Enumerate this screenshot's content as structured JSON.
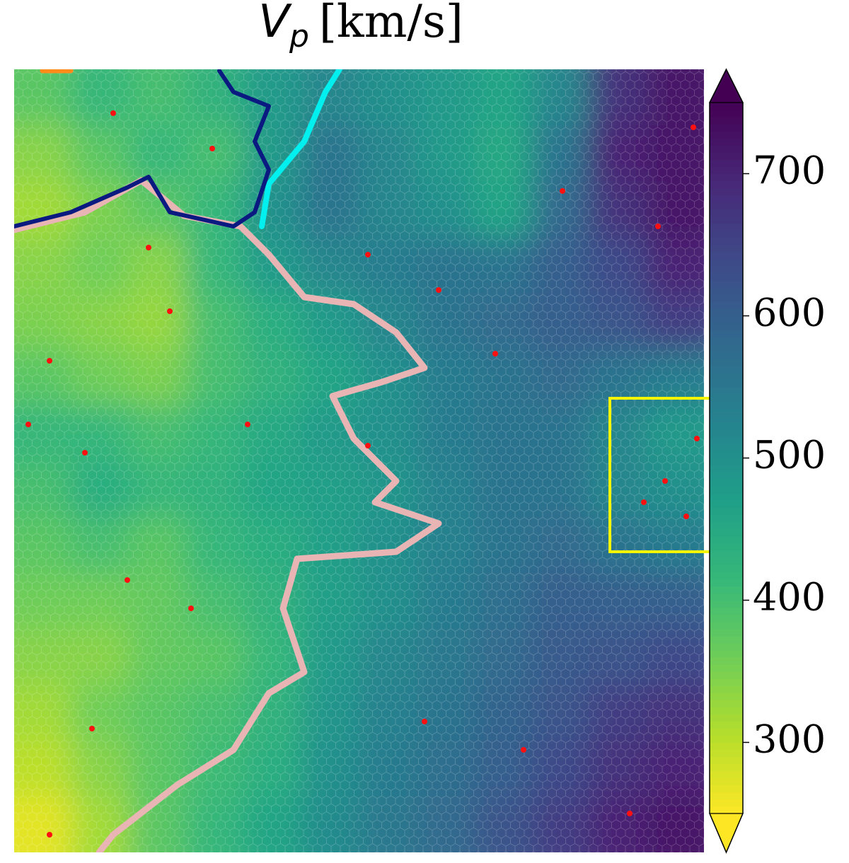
{
  "chart_data": {
    "type": "heatmap",
    "title": "V",
    "title_subscript": "p",
    "title_unit": "[km/s]",
    "colormap": "viridis_r",
    "colorbar_extend": "both",
    "clim": [
      250,
      750
    ],
    "cticks": [
      300,
      400,
      500,
      600,
      700
    ],
    "values": [
      [
        380,
        420,
        400,
        430,
        480,
        520,
        500,
        480,
        460,
        520,
        680,
        720
      ],
      [
        340,
        380,
        420,
        400,
        480,
        560,
        520,
        480,
        450,
        560,
        700,
        720
      ],
      [
        320,
        350,
        380,
        420,
        500,
        560,
        520,
        500,
        460,
        580,
        680,
        720
      ],
      [
        340,
        360,
        340,
        420,
        480,
        520,
        540,
        560,
        560,
        600,
        640,
        700
      ],
      [
        350,
        340,
        330,
        400,
        440,
        480,
        520,
        560,
        580,
        600,
        620,
        660
      ],
      [
        380,
        360,
        350,
        400,
        430,
        460,
        500,
        540,
        560,
        580,
        560,
        540
      ],
      [
        420,
        420,
        400,
        420,
        450,
        480,
        500,
        540,
        560,
        560,
        520,
        480
      ],
      [
        400,
        440,
        420,
        430,
        460,
        470,
        490,
        530,
        560,
        560,
        520,
        500
      ],
      [
        380,
        400,
        380,
        420,
        440,
        470,
        500,
        530,
        560,
        580,
        560,
        540
      ],
      [
        360,
        360,
        370,
        400,
        430,
        470,
        500,
        540,
        570,
        600,
        600,
        600
      ],
      [
        340,
        340,
        370,
        380,
        420,
        480,
        520,
        550,
        580,
        610,
        620,
        640
      ],
      [
        320,
        360,
        380,
        400,
        430,
        490,
        530,
        560,
        590,
        620,
        660,
        680
      ],
      [
        300,
        340,
        380,
        410,
        440,
        500,
        540,
        570,
        600,
        640,
        680,
        700
      ],
      [
        270,
        320,
        380,
        420,
        460,
        510,
        550,
        580,
        620,
        660,
        700,
        720
      ]
    ]
  }
}
